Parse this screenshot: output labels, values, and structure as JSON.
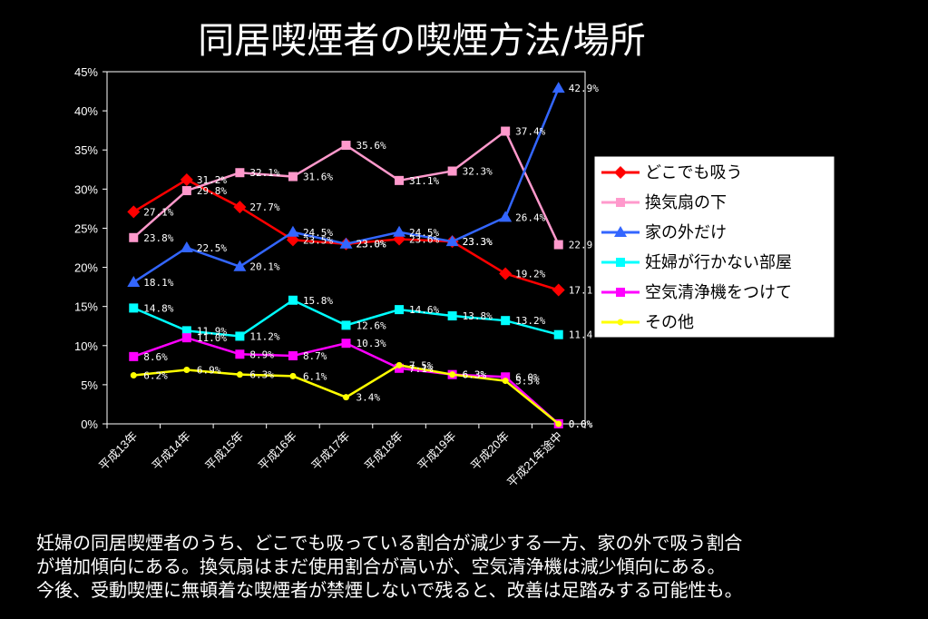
{
  "title": "同居喫煙者の喫煙方法/場所",
  "caption": [
    "妊婦の同居喫煙者のうち、どこでも吸っている割合が減少する一方、家の外で吸う割合",
    "が増加傾向にある。換気扇はまだ使用割合が高いが、空気清浄機は減少傾向にある。",
    "今後、受動喫煙に無頓着な喫煙者が禁煙しないで残ると、改善は足踏みする可能性も。"
  ],
  "chart_data": {
    "type": "line",
    "title": "",
    "xlabel": "",
    "ylabel": "",
    "ylim": [
      0,
      45
    ],
    "yticks": [
      "0%",
      "5%",
      "10%",
      "15%",
      "20%",
      "25%",
      "30%",
      "35%",
      "40%",
      "45%"
    ],
    "categories": [
      "平成13年",
      "平成14年",
      "平成15年",
      "平成16年",
      "平成17年",
      "平成18年",
      "平成19年",
      "平成20年",
      "平成21年途中"
    ],
    "legend_position": "right",
    "grid": false,
    "series": [
      {
        "name": "どこでも吸う",
        "color": "#ff0000",
        "marker": "diamond",
        "values": [
          27.1,
          31.2,
          27.7,
          23.5,
          23.0,
          23.6,
          23.3,
          19.2,
          17.1
        ],
        "labels": [
          "27.1%",
          "31.2%",
          "27.7%",
          "23.5%",
          "23.0%",
          "23.6%",
          "23.3%",
          "19.2%",
          "17.1"
        ]
      },
      {
        "name": "換気扇の下",
        "color": "#ff99cc",
        "marker": "square",
        "values": [
          23.8,
          29.8,
          32.1,
          31.6,
          35.6,
          31.1,
          32.3,
          37.4,
          22.9
        ],
        "labels": [
          "23.8%",
          "29.8%",
          "32.1%",
          "31.6%",
          "35.6%",
          "31.1%",
          "32.3%",
          "37.4%",
          "22.9"
        ]
      },
      {
        "name": "家の外だけ",
        "color": "#3366ff",
        "marker": "triangle",
        "values": [
          18.1,
          22.5,
          20.1,
          24.5,
          23.0,
          24.5,
          23.3,
          26.4,
          42.9
        ],
        "labels": [
          "18.1%",
          "22.5%",
          "20.1%",
          "24.5%",
          "23.0%",
          "24.5%",
          "23.3%",
          "26.4%",
          "42.9%"
        ]
      },
      {
        "name": "妊婦が行かない部屋",
        "color": "#00ffff",
        "marker": "square",
        "values": [
          14.8,
          11.9,
          11.2,
          15.8,
          12.6,
          14.6,
          13.8,
          13.2,
          11.4
        ],
        "labels": [
          "14.8%",
          "11.9%",
          "11.2%",
          "15.8%",
          "12.6%",
          "14.6%",
          "13.8%",
          "13.2%",
          "11.4"
        ]
      },
      {
        "name": "空気清浄機をつけて",
        "color": "#ff00ff",
        "marker": "square",
        "values": [
          8.6,
          11.0,
          8.9,
          8.7,
          10.3,
          7.1,
          6.3,
          6.0,
          0.0
        ],
        "labels": [
          "8.6%",
          "11.0%",
          "8.9%",
          "8.7%",
          "10.3%",
          "7.1%",
          "6.3%",
          "6.0%",
          "0.0%"
        ]
      },
      {
        "name": "その他",
        "color": "#ffff00",
        "marker": "circle",
        "values": [
          6.2,
          6.9,
          6.3,
          6.1,
          3.4,
          7.5,
          6.3,
          5.5,
          0.0
        ],
        "labels": [
          "6.2%",
          "6.9%",
          "6.3%",
          "6.1%",
          "3.4%",
          "7.5%",
          "6.3%",
          "5.5%",
          "0.0%"
        ]
      }
    ]
  }
}
